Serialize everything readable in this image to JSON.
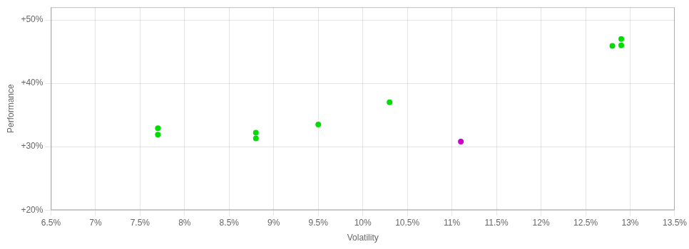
{
  "chart_data": {
    "type": "scatter",
    "xlabel": "Volatility",
    "ylabel": "Performance",
    "xlim": [
      0.065,
      0.135
    ],
    "ylim": [
      0.2,
      0.52
    ],
    "xticks": [
      {
        "value": 0.065,
        "label": "6.5%"
      },
      {
        "value": 0.07,
        "label": "7%"
      },
      {
        "value": 0.075,
        "label": "7.5%"
      },
      {
        "value": 0.08,
        "label": "8%"
      },
      {
        "value": 0.085,
        "label": "8.5%"
      },
      {
        "value": 0.09,
        "label": "9%"
      },
      {
        "value": 0.095,
        "label": "9.5%"
      },
      {
        "value": 0.1,
        "label": "10%"
      },
      {
        "value": 0.105,
        "label": "10.5%"
      },
      {
        "value": 0.11,
        "label": "11%"
      },
      {
        "value": 0.115,
        "label": "11.5%"
      },
      {
        "value": 0.12,
        "label": "12%"
      },
      {
        "value": 0.125,
        "label": "12.5%"
      },
      {
        "value": 0.13,
        "label": "13%"
      },
      {
        "value": 0.135,
        "label": "13.5%"
      }
    ],
    "yticks": [
      {
        "value": 0.2,
        "label": "+20%"
      },
      {
        "value": 0.3,
        "label": "+30%"
      },
      {
        "value": 0.4,
        "label": "+40%"
      },
      {
        "value": 0.5,
        "label": "+50%"
      }
    ],
    "grid": true,
    "series": [
      {
        "color": "#00dd00",
        "x": [
          0.077,
          0.077,
          0.088,
          0.088,
          0.095,
          0.103,
          0.128,
          0.129,
          0.129
        ],
        "values": [
          0.319,
          0.329,
          0.322,
          0.313,
          0.335,
          0.37,
          0.459,
          0.47,
          0.46
        ]
      },
      {
        "color": "#cc00cc",
        "x": [
          0.111
        ],
        "values": [
          0.308
        ]
      }
    ]
  }
}
